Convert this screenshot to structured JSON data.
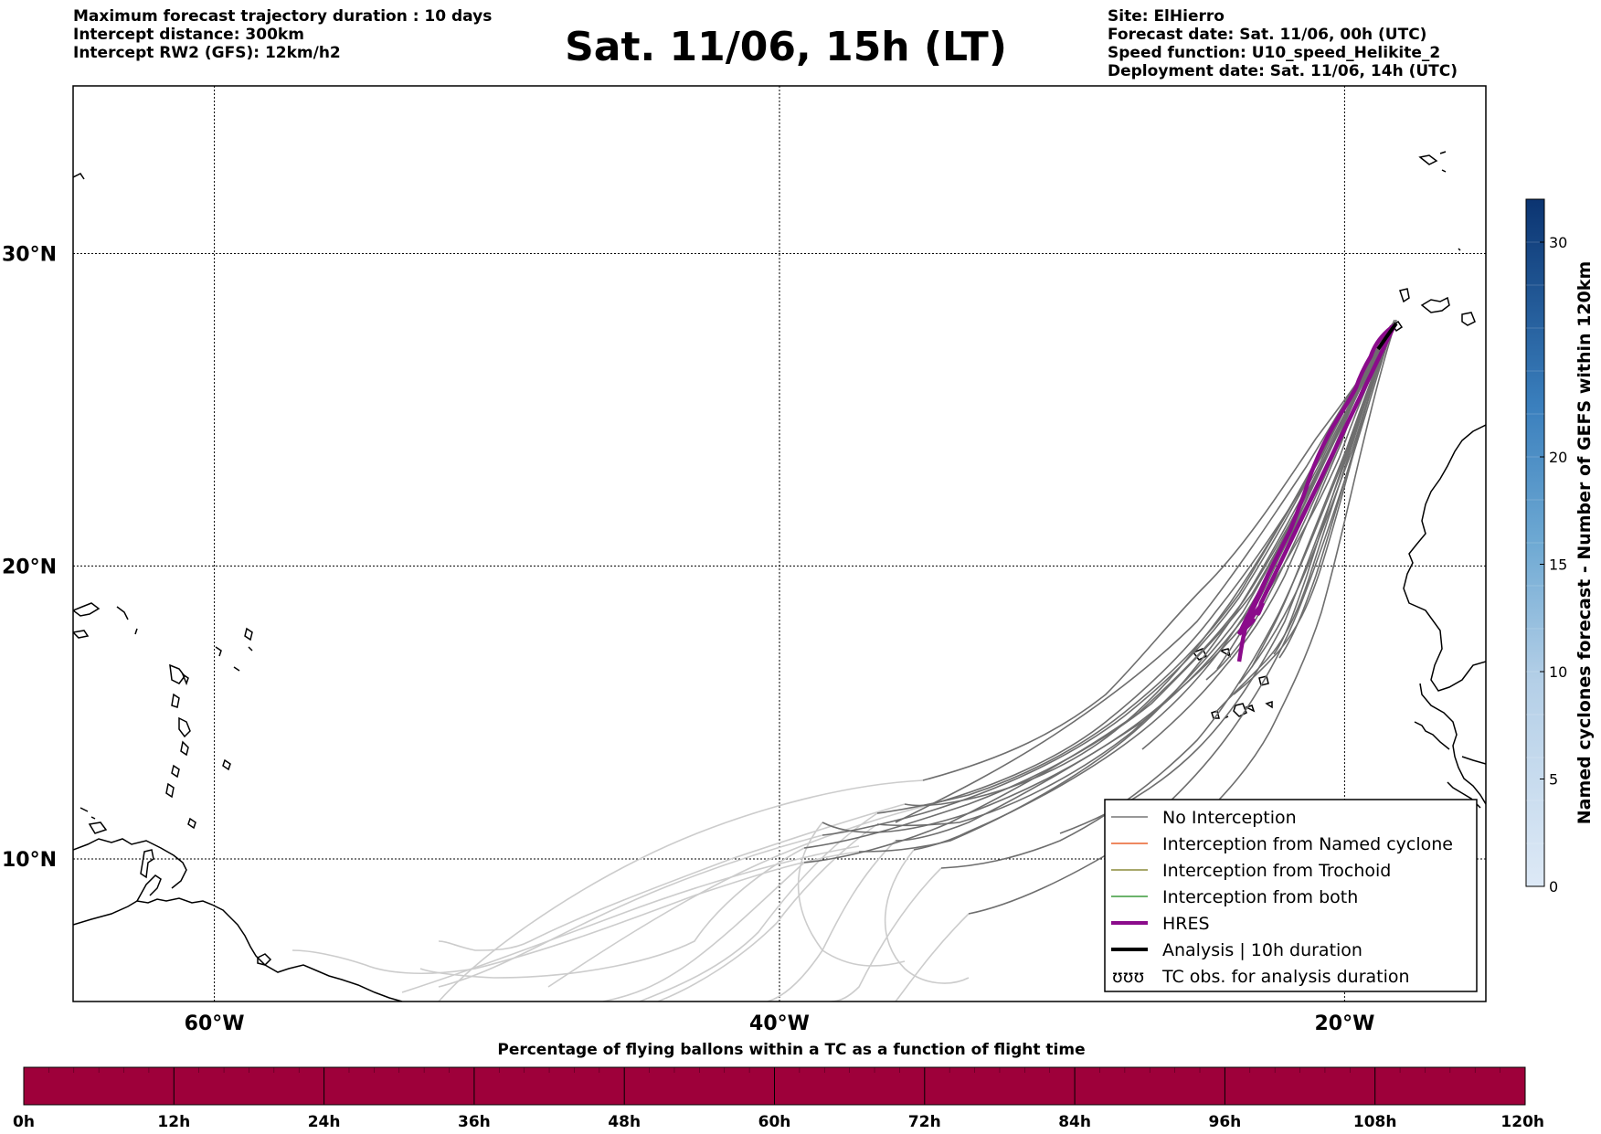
{
  "header": {
    "left_lines": [
      "Maximum forecast trajectory duration : 10 days",
      "Intercept distance: 300km",
      "Intercept RW2 (GFS):  12km/h2"
    ],
    "title": "Sat. 11/06, 15h (LT)",
    "right_lines": [
      "Site: ElHierro",
      "Forecast date: Sat. 11/06, 00h (UTC)",
      "Speed function: U10_speed_Helikite_2",
      "Deployment date: Sat. 11/06, 14h (UTC)"
    ]
  },
  "map": {
    "lon_range": [
      -65,
      -15
    ],
    "lat_range": [
      5,
      35
    ],
    "lat_labels": [
      {
        "lat": 30,
        "text": "30°N"
      },
      {
        "lat": 20,
        "text": "20°N"
      },
      {
        "lat": 10,
        "text": "10°N"
      }
    ],
    "lon_labels": [
      {
        "lon": -60,
        "text": "60°W"
      },
      {
        "lon": -40,
        "text": "40°W"
      },
      {
        "lon": -20,
        "text": "20°W"
      }
    ],
    "colors": {
      "no_interception": "#777777",
      "faded": "#cccccc",
      "named_cyclone": "#e8602c",
      "trochoid": "#8c8c3a",
      "both": "#3a9a3a",
      "hres": "#8b0b8b",
      "analysis": "#000000"
    }
  },
  "legend": {
    "items": [
      {
        "label": "No Interception",
        "type": "line",
        "color": "#777777"
      },
      {
        "label": "Interception from Named cyclone",
        "type": "line",
        "color": "#e8602c"
      },
      {
        "label": "Interception from Trochoid",
        "type": "line",
        "color": "#8c8c3a"
      },
      {
        "label": "Interception from both",
        "type": "line",
        "color": "#3a9a3a"
      },
      {
        "label": "HRES",
        "type": "thick",
        "color": "#8b0b8b"
      },
      {
        "label": "Analysis | 10h duration",
        "type": "thick",
        "color": "#000000"
      },
      {
        "label": "TC obs. for analysis duration",
        "type": "symbol",
        "symbol": "ʊʊʊ"
      }
    ]
  },
  "colorbar": {
    "label": "Named cyclones forecast - Number of GEFS within 120km",
    "min": 0,
    "max": 32,
    "ticks": [
      0,
      5,
      10,
      15,
      20,
      30
    ]
  },
  "timebar": {
    "title": "Percentage of flying ballons within a TC as a function of flight time",
    "ticks": [
      "0h",
      "12h",
      "24h",
      "36h",
      "48h",
      "60h",
      "72h",
      "84h",
      "96h",
      "108h",
      "120h"
    ],
    "color": "#9e003a"
  }
}
